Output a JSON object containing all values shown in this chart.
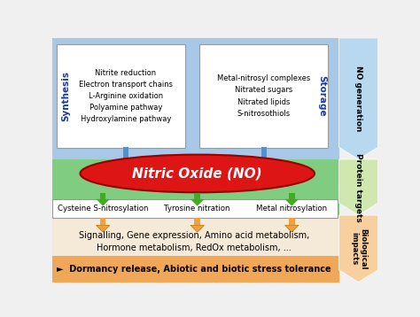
{
  "fig_width": 4.74,
  "fig_height": 3.58,
  "dpi": 100,
  "bg_color": "#f0f0f0",
  "top_band_color": "#a8c8e8",
  "middle_band_color": "#80cc80",
  "bottom_band_color": "#f5ead8",
  "orange_bar_color": "#f0a858",
  "right_no_gen_color": "#b8d8f0",
  "right_protein_color": "#d0e8b0",
  "right_bio_color": "#f8d0a0",
  "synthesis_box_text": "Nitrite reduction\nElectron transport chains\nL-Arginine oxidation\nPolyamine pathway\nHydroxylamine pathway",
  "storage_box_text": "Metal-nitrosyl complexes\nNitrated sugars\nNitrated lipids\nS-nitrosothiols",
  "synthesis_label": "Synthesis",
  "storage_label": "Storage",
  "no_label": "Nitric Oxide (NO)",
  "protein_target1": "Cysteine S-nitrosylation",
  "protein_target2": "Tyrosine nitration",
  "protein_target3": "Metal nitrosylation",
  "bio_text": "Signalling, Gene expression, Amino acid metabolism,\nHormone metabolism, RedOx metabolism, ...",
  "dormancy_text": "►  Dormancy release, Abiotic and biotic stress tolerance",
  "right_label1": "NO generation",
  "right_label2": "Protein targets",
  "right_label3": "Biological\nimpacts",
  "ellipse_color": "#dd1515",
  "ellipse_edge_color": "#990000",
  "ellipse_text_color": "#ffffff",
  "blue_arrow_color": "#5590cc",
  "green_arrow_color": "#44aa22",
  "orange_arrow_color": "#f0a040",
  "orange_arrow_edge": "#c07000",
  "synthesis_label_color": "#1a3a9a",
  "storage_label_color": "#1a3a9a",
  "box_edge_color": "#999999"
}
